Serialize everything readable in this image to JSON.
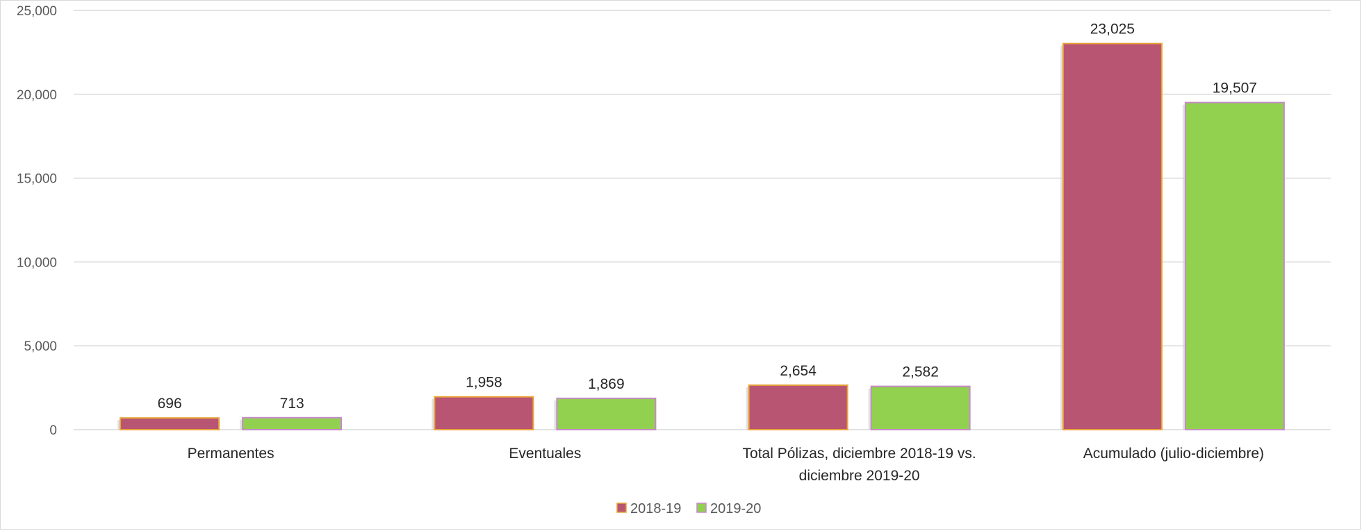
{
  "chart_data": {
    "type": "bar",
    "categories": [
      [
        "Permanentes"
      ],
      [
        "Eventuales"
      ],
      [
        "Total Pólizas, diciembre 2018-19  vs.",
        "diciembre 2019-20"
      ],
      [
        "Acumulado (julio-diciembre)"
      ]
    ],
    "series": [
      {
        "name": "2018-19",
        "values": [
          696,
          1958,
          2654,
          23025
        ],
        "color": "#b85573",
        "border": "#e8a33a"
      },
      {
        "name": "2019-20",
        "values": [
          713,
          1869,
          2582,
          19507
        ],
        "color": "#92d050",
        "border": "#c58ac9"
      }
    ],
    "y_ticks": [
      "0",
      "5,000",
      "10,000",
      "15,000",
      "20,000",
      "25,000"
    ],
    "data_labels": [
      [
        "696",
        "1,958",
        "2,654",
        "23,025"
      ],
      [
        "713",
        "1,869",
        "2,582",
        "19,507"
      ]
    ],
    "ylim": [
      0,
      25000
    ],
    "grid": true,
    "legend_position": "bottom"
  }
}
